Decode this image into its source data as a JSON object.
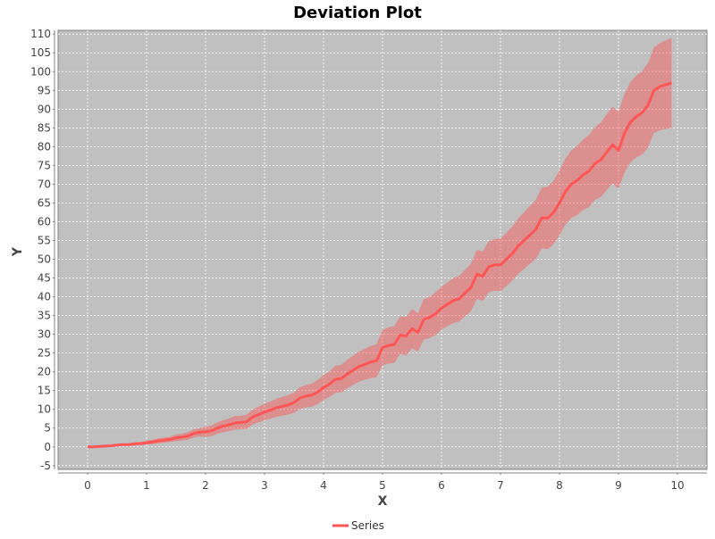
{
  "chart_data": {
    "type": "line",
    "title": "Deviation Plot",
    "xlabel": "X",
    "ylabel": "Y",
    "xlim": [
      -0.5,
      10.5
    ],
    "ylim": [
      -6,
      111
    ],
    "x_ticks": [
      "0",
      "1",
      "2",
      "3",
      "4",
      "5",
      "6",
      "7",
      "8",
      "9",
      "10"
    ],
    "y_ticks": [
      "-5",
      "0",
      "5",
      "10",
      "15",
      "20",
      "25",
      "30",
      "35",
      "40",
      "45",
      "50",
      "55",
      "60",
      "65",
      "70",
      "75",
      "80",
      "85",
      "90",
      "95",
      "100",
      "105",
      "110"
    ],
    "grid": true,
    "legend_position": "bottom",
    "background": "#c0c0c0",
    "series": [
      {
        "name": "Series",
        "color": "#ff5555",
        "band_color": "#ff5555",
        "x": [
          0,
          0.1,
          0.2,
          0.3,
          0.4,
          0.5,
          0.6,
          0.7,
          0.8,
          0.9,
          1.0,
          1.1,
          1.2,
          1.3,
          1.4,
          1.5,
          1.6,
          1.7,
          1.8,
          1.9,
          2.0,
          2.1,
          2.2,
          2.3,
          2.4,
          2.5,
          2.6,
          2.7,
          2.8,
          2.9,
          3.0,
          3.1,
          3.2,
          3.3,
          3.4,
          3.5,
          3.6,
          3.7,
          3.8,
          3.9,
          4.0,
          4.1,
          4.2,
          4.3,
          4.4,
          4.5,
          4.6,
          4.7,
          4.8,
          4.9,
          5.0,
          5.1,
          5.2,
          5.3,
          5.4,
          5.5,
          5.6,
          5.7,
          5.8,
          5.9,
          6.0,
          6.1,
          6.2,
          6.3,
          6.4,
          6.5,
          6.6,
          6.7,
          6.8,
          6.9,
          7.0,
          7.1,
          7.2,
          7.3,
          7.4,
          7.5,
          7.6,
          7.7,
          7.8,
          7.9,
          8.0,
          8.1,
          8.2,
          8.3,
          8.4,
          8.5,
          8.6,
          8.7,
          8.8,
          8.9,
          9.0,
          9.1,
          9.2,
          9.3,
          9.4,
          9.5,
          9.6,
          9.7,
          9.8,
          9.9
        ],
        "y": [
          0,
          0,
          0.1,
          0.2,
          0.3,
          0.5,
          0.6,
          0.6,
          0.8,
          0.9,
          1.1,
          1.3,
          1.6,
          1.8,
          2.0,
          2.4,
          2.6,
          2.9,
          3.6,
          3.9,
          4.0,
          4.3,
          5.0,
          5.5,
          5.9,
          6.4,
          6.5,
          6.7,
          8.0,
          8.6,
          9.3,
          9.8,
          10.4,
          10.8,
          11.2,
          11.8,
          13.0,
          13.5,
          13.8,
          14.6,
          15.8,
          16.7,
          18.0,
          18.2,
          19.4,
          20.4,
          21.4,
          22.0,
          22.6,
          23.0,
          26.5,
          27.0,
          27.3,
          29.8,
          29.5,
          31.5,
          30.5,
          34.0,
          34.5,
          35.5,
          37.0,
          38.0,
          39.0,
          39.5,
          41.0,
          42.5,
          46.0,
          45.5,
          48.0,
          48.5,
          48.5,
          50.0,
          51.5,
          53.5,
          55.0,
          56.5,
          58.0,
          61.0,
          61.0,
          62.5,
          65.0,
          68.0,
          70.0,
          71.0,
          72.5,
          73.5,
          75.5,
          76.5,
          78.5,
          80.5,
          79.0,
          83.5,
          86.5,
          88.0,
          89.0,
          91.0,
          95.0,
          96.0,
          96.5,
          97.0
        ],
        "lower": [
          -0.2,
          -0.2,
          -0.1,
          0,
          0.1,
          0.2,
          0.3,
          0.3,
          0.4,
          0.5,
          0.6,
          0.7,
          0.9,
          1.1,
          1.3,
          1.5,
          1.7,
          1.9,
          2.5,
          2.8,
          2.6,
          2.9,
          3.5,
          3.9,
          4.2,
          4.6,
          4.7,
          4.8,
          6.0,
          6.5,
          7.1,
          7.5,
          8.0,
          8.3,
          8.6,
          9.1,
          10.1,
          10.5,
          10.7,
          11.4,
          12.5,
          13.3,
          14.4,
          14.5,
          15.6,
          16.5,
          17.4,
          17.9,
          18.3,
          18.6,
          21.8,
          22.2,
          22.4,
          24.8,
          24.4,
          26.3,
          25.4,
          28.6,
          29.0,
          29.8,
          31.3,
          32.2,
          33.0,
          33.4,
          34.8,
          36.2,
          39.5,
          38.9,
          41.2,
          41.6,
          41.5,
          42.9,
          44.3,
          46.1,
          47.5,
          48.8,
          50.1,
          52.9,
          52.7,
          54.0,
          56.4,
          59.2,
          61.0,
          61.8,
          63.1,
          63.9,
          65.8,
          66.6,
          68.4,
          70.3,
          68.7,
          73.0,
          75.8,
          77.1,
          77.9,
          79.7,
          83.6,
          84.4,
          84.7,
          85.0
        ],
        "upper": [
          0.2,
          0.2,
          0.3,
          0.4,
          0.5,
          0.8,
          0.9,
          0.9,
          1.2,
          1.3,
          1.6,
          1.9,
          2.3,
          2.5,
          2.7,
          3.3,
          3.5,
          3.9,
          4.7,
          5.0,
          5.4,
          5.7,
          6.5,
          7.1,
          7.6,
          8.2,
          8.3,
          8.6,
          10.0,
          10.7,
          11.5,
          12.1,
          12.8,
          13.3,
          13.8,
          14.5,
          15.9,
          16.5,
          16.9,
          17.8,
          19.1,
          20.1,
          21.6,
          21.9,
          23.2,
          24.3,
          25.4,
          26.1,
          26.9,
          27.4,
          31.2,
          31.8,
          32.2,
          34.8,
          34.6,
          36.7,
          35.6,
          39.4,
          40.0,
          41.2,
          42.7,
          43.8,
          45.0,
          45.6,
          47.2,
          48.8,
          52.5,
          52.1,
          54.8,
          55.4,
          55.5,
          57.1,
          58.7,
          60.9,
          62.5,
          64.2,
          65.9,
          69.1,
          69.3,
          71.0,
          73.6,
          76.8,
          79.0,
          80.2,
          81.9,
          83.1,
          85.2,
          86.4,
          88.6,
          90.7,
          89.3,
          94.0,
          97.2,
          98.9,
          100.1,
          102.3,
          106.4,
          107.6,
          108.3,
          109.0
        ]
      }
    ]
  }
}
